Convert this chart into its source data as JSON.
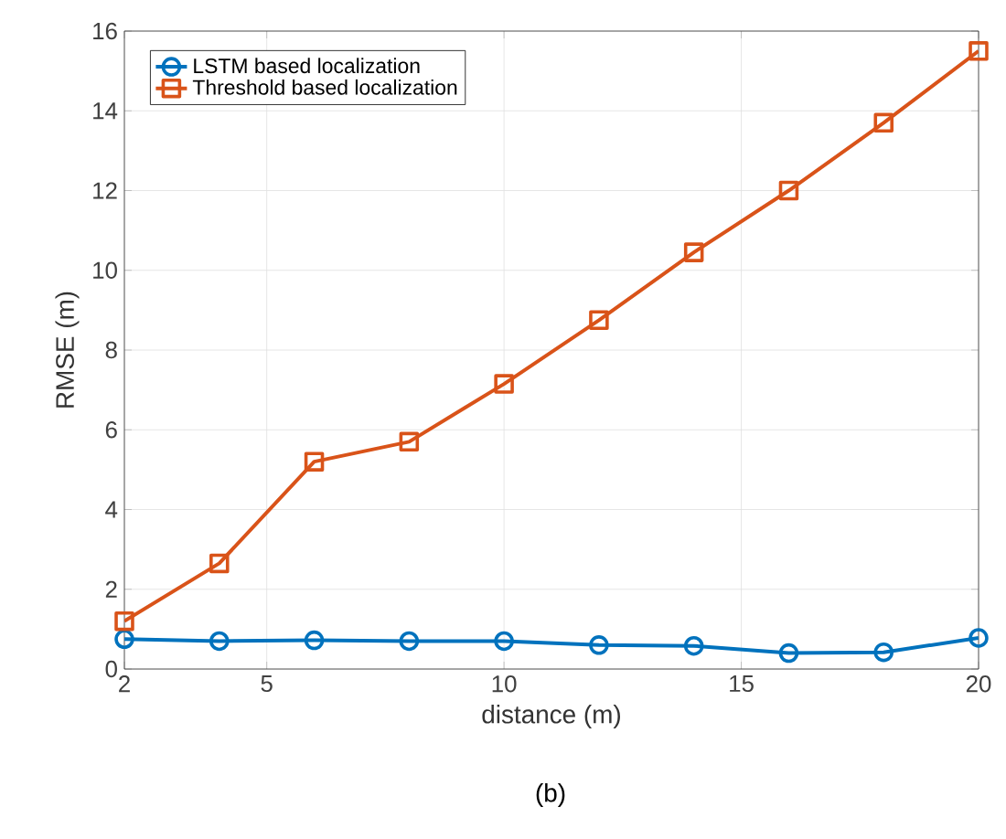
{
  "chart_data": {
    "type": "line",
    "xlabel": "distance (m)",
    "ylabel": "RMSE (m)",
    "annotations": [
      "(b)"
    ],
    "x": [
      2,
      4,
      6,
      8,
      10,
      12,
      14,
      16,
      18,
      20
    ],
    "series": [
      {
        "name": "LSTM based localization",
        "color": "#0072bd",
        "marker": "circle",
        "values": [
          0.75,
          0.7,
          0.72,
          0.7,
          0.7,
          0.6,
          0.58,
          0.4,
          0.42,
          0.78
        ]
      },
      {
        "name": "Threshold based localization",
        "color": "#d95319",
        "marker": "square",
        "values": [
          1.2,
          2.65,
          5.2,
          5.7,
          7.15,
          8.75,
          10.45,
          12.0,
          13.7,
          15.5
        ]
      }
    ],
    "xlim": [
      2,
      20
    ],
    "xticks": [
      2,
      5,
      10,
      15,
      20
    ],
    "ylim": [
      0,
      16
    ],
    "yticks": [
      0,
      2,
      4,
      6,
      8,
      10,
      12,
      14,
      16
    ],
    "grid": true,
    "legend": "top left",
    "line_style": "solid"
  }
}
